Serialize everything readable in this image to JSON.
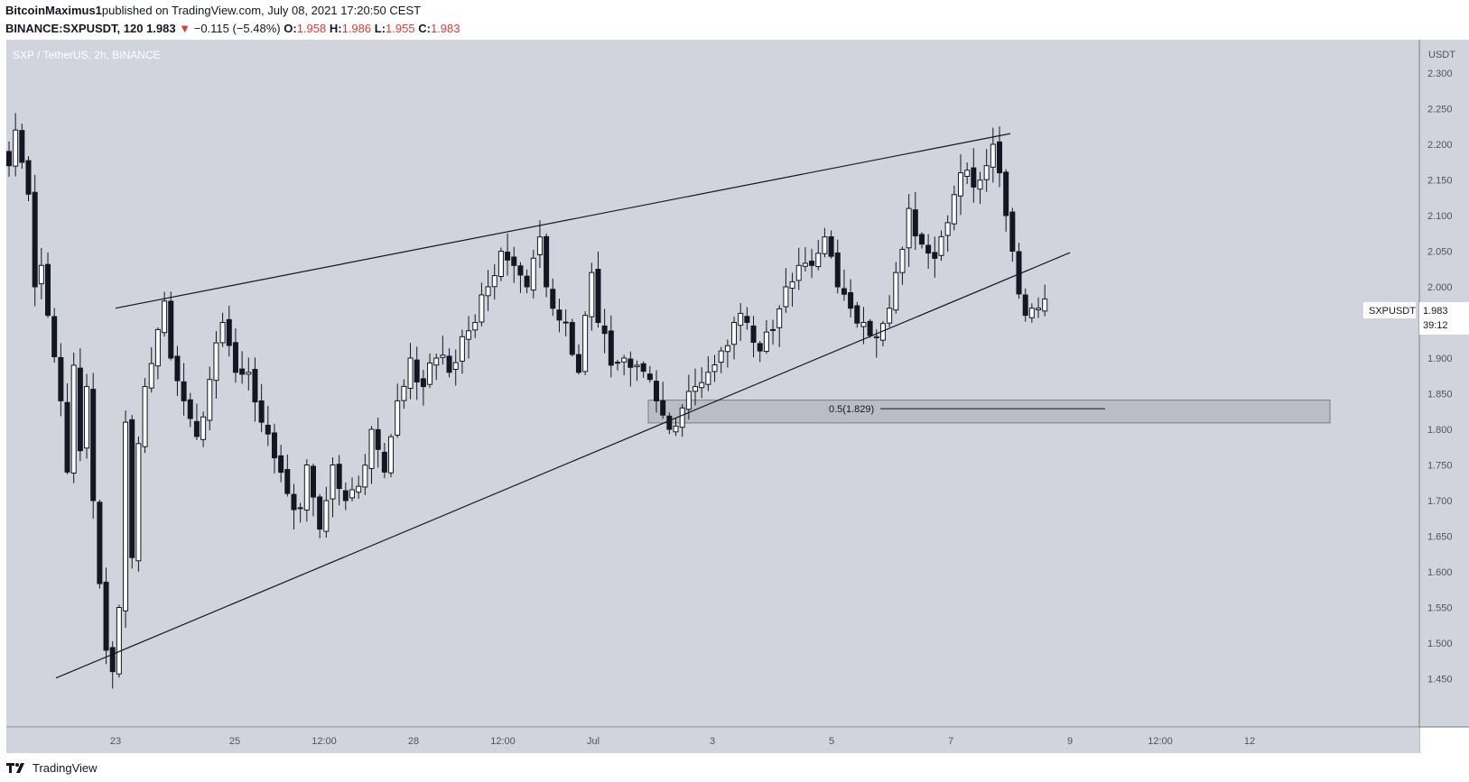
{
  "header": {
    "author": "BitcoinMaximus1",
    "published_text": " published on TradingView.com, July 08, 2021 17:20:50 CEST",
    "symbol_line": "BINANCE:SXPUSDT, 120",
    "last": "1.983",
    "change_arrow": "▼",
    "change": "−0.115 (−5.48%)",
    "o_label": "O:",
    "o_value": "1.958",
    "h_label": "H:",
    "h_value": "1.986",
    "l_label": "L:",
    "l_value": "1.955",
    "c_label": "C:",
    "c_value": "1.983"
  },
  "chart_title": "SXP / TetherUS, 2h, BINANCE",
  "currency_label": "USDT",
  "price_tag": {
    "symbol": "SXPUSDT",
    "value": "1.983",
    "countdown": "39:12"
  },
  "fib_label": "0.5(1.829)",
  "footer": {
    "brand": "TradingView"
  },
  "colors": {
    "background": "#d1d4dc",
    "candle_body": "#131722",
    "candle_up_fill": "#ffffff",
    "trendline": "#131722",
    "zone_fill": "#b2b5be",
    "zone_border": "#787b86"
  },
  "icons": {
    "brand_logo": "tradingview-logo-icon",
    "change_indicator": "triangle-down-icon"
  },
  "chart_data": {
    "type": "candlestick",
    "title": "SXP / TetherUS, 2h, BINANCE",
    "ylabel": "USDT",
    "ylim": [
      1.42,
      2.35
    ],
    "y_ticks": [
      "2.300",
      "2.250",
      "2.200",
      "2.150",
      "2.100",
      "2.050",
      "2.000",
      "1.950",
      "1.900",
      "1.850",
      "1.800",
      "1.750",
      "1.700",
      "1.650",
      "1.600",
      "1.550",
      "1.500",
      "1.450"
    ],
    "x_ticks": [
      "23",
      "25",
      "12:00",
      "28",
      "12:00",
      "Jul",
      "3",
      "5",
      "7",
      "9",
      "12:00",
      "12"
    ],
    "grid": false,
    "ohlc_path": [
      [
        0,
        2.17
      ],
      [
        1,
        2.22
      ],
      [
        3,
        2.13
      ],
      [
        4,
        2.0
      ],
      [
        5,
        2.03
      ],
      [
        6,
        1.96
      ],
      [
        8,
        1.84
      ],
      [
        9,
        1.74
      ],
      [
        10,
        1.89
      ],
      [
        11,
        1.77
      ],
      [
        12,
        1.86
      ],
      [
        13,
        1.7
      ],
      [
        15,
        1.49
      ],
      [
        16,
        1.46
      ],
      [
        17,
        1.55
      ],
      [
        18,
        1.81
      ],
      [
        19,
        1.62
      ],
      [
        20,
        1.78
      ],
      [
        21,
        1.86
      ],
      [
        23,
        1.94
      ],
      [
        24,
        1.98
      ],
      [
        25,
        1.9
      ],
      [
        27,
        1.84
      ],
      [
        29,
        1.79
      ],
      [
        31,
        1.87
      ],
      [
        33,
        1.95
      ],
      [
        35,
        1.88
      ],
      [
        37,
        1.88
      ],
      [
        39,
        1.81
      ],
      [
        41,
        1.76
      ],
      [
        43,
        1.71
      ],
      [
        45,
        1.69
      ],
      [
        46,
        1.75
      ],
      [
        48,
        1.66
      ],
      [
        49,
        1.7
      ],
      [
        50,
        1.75
      ],
      [
        52,
        1.7
      ],
      [
        54,
        1.72
      ],
      [
        56,
        1.8
      ],
      [
        58,
        1.74
      ],
      [
        60,
        1.84
      ],
      [
        62,
        1.9
      ],
      [
        64,
        1.86
      ],
      [
        66,
        1.9
      ],
      [
        68,
        1.88
      ],
      [
        70,
        1.93
      ],
      [
        72,
        1.95
      ],
      [
        74,
        2.0
      ],
      [
        76,
        2.05
      ],
      [
        78,
        2.03
      ],
      [
        80,
        2.0
      ],
      [
        82,
        2.07
      ],
      [
        83,
        2.0
      ],
      [
        84,
        1.97
      ],
      [
        86,
        1.95
      ],
      [
        88,
        1.88
      ],
      [
        89,
        1.96
      ],
      [
        90,
        2.02
      ],
      [
        91,
        1.95
      ],
      [
        93,
        1.89
      ],
      [
        95,
        1.9
      ],
      [
        97,
        1.89
      ],
      [
        99,
        1.87
      ],
      [
        101,
        1.82
      ],
      [
        102,
        1.8
      ],
      [
        104,
        1.83
      ],
      [
        106,
        1.86
      ],
      [
        108,
        1.88
      ],
      [
        110,
        1.91
      ],
      [
        112,
        1.95
      ],
      [
        114,
        1.95
      ],
      [
        116,
        1.91
      ],
      [
        118,
        1.94
      ],
      [
        120,
        2.0
      ],
      [
        122,
        2.03
      ],
      [
        124,
        2.03
      ],
      [
        126,
        2.07
      ],
      [
        128,
        2.0
      ],
      [
        130,
        1.97
      ],
      [
        132,
        1.95
      ],
      [
        134,
        1.93
      ],
      [
        136,
        1.97
      ],
      [
        137,
        2.02
      ],
      [
        139,
        2.11
      ],
      [
        141,
        2.06
      ],
      [
        143,
        2.04
      ],
      [
        145,
        2.09
      ],
      [
        147,
        2.16
      ],
      [
        149,
        2.14
      ],
      [
        151,
        2.17
      ],
      [
        152,
        2.2
      ],
      [
        153,
        2.16
      ],
      [
        154,
        2.1
      ],
      [
        155,
        2.05
      ],
      [
        156,
        1.99
      ],
      [
        157,
        1.96
      ],
      [
        158,
        1.97
      ],
      [
        159,
        1.97
      ],
      [
        160,
        1.983
      ]
    ],
    "last_close": 1.983,
    "rising_wedge": {
      "upper_line": [
        [
          "Jun 23",
          1.97
        ],
        [
          "Jul 8",
          2.215
        ]
      ],
      "lower_line": [
        [
          "Jun 22",
          1.451
        ],
        [
          "Jul 9",
          2.048
        ]
      ]
    },
    "fib_level": {
      "ratio": 0.5,
      "value": 1.829,
      "zone": [
        1.809,
        1.841
      ]
    }
  }
}
